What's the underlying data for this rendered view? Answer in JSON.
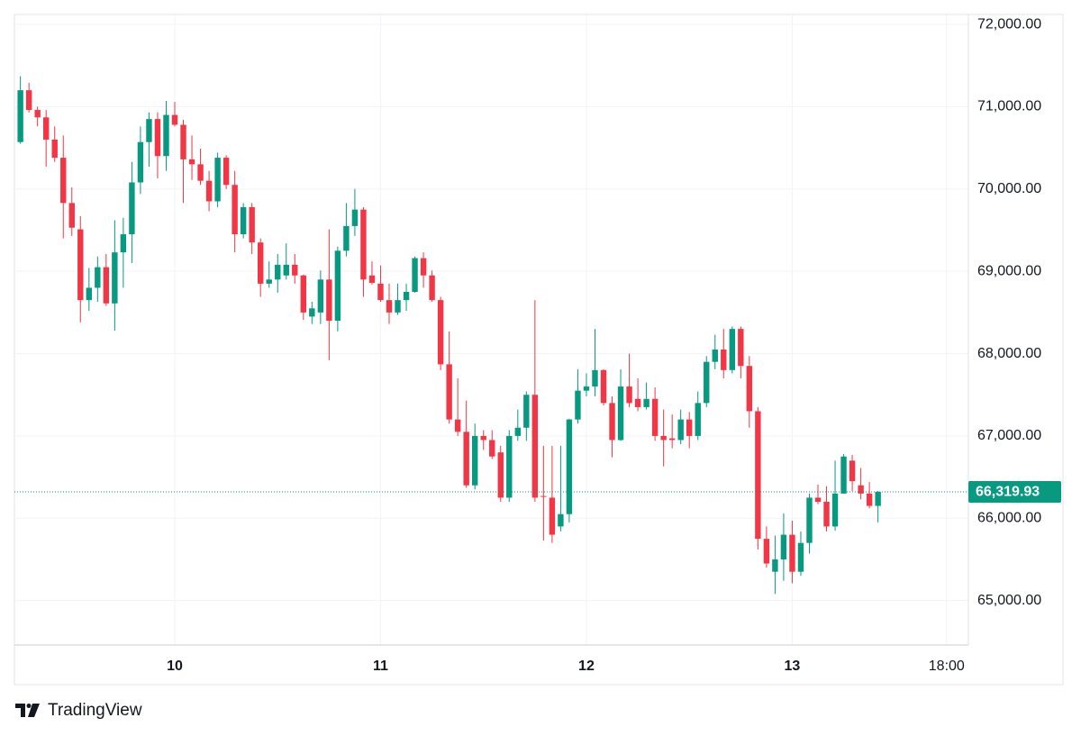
{
  "chart_data": {
    "type": "candlestick",
    "categories": [
      null,
      null,
      null,
      null,
      null,
      null,
      null,
      null,
      null,
      null,
      null,
      null,
      null,
      null,
      null,
      null,
      null,
      null,
      "10",
      null,
      null,
      null,
      null,
      null,
      null,
      null,
      null,
      null,
      null,
      null,
      null,
      null,
      null,
      null,
      null,
      null,
      null,
      null,
      null,
      null,
      null,
      null,
      "11",
      null,
      null,
      null,
      null,
      null,
      null,
      null,
      null,
      null,
      null,
      null,
      null,
      null,
      null,
      null,
      null,
      null,
      null,
      null,
      null,
      null,
      null,
      null,
      "12",
      null,
      null,
      null,
      null,
      null,
      null,
      null,
      null,
      null,
      null,
      null,
      null,
      null,
      null,
      null,
      null,
      null,
      null,
      null,
      null,
      null,
      null,
      null,
      "13",
      null,
      null,
      null,
      null,
      null,
      null,
      null,
      null,
      null,
      null,
      null,
      null,
      null,
      null,
      null,
      null,
      null,
      "18:00",
      null,
      null
    ],
    "open": [
      70570,
      71200,
      70960,
      70870,
      70600,
      70380,
      69830,
      69510,
      68650,
      68800,
      69050,
      68610,
      69230,
      69450,
      70080,
      70570,
      70850,
      70400,
      70900,
      70780,
      70360,
      70300,
      70100,
      69850,
      70380,
      70050,
      69450,
      69780,
      69350,
      68850,
      68900,
      68950,
      69080,
      68950,
      68450,
      68500,
      68900,
      68400,
      69250,
      69550,
      69750,
      68950,
      68850,
      68650,
      68500,
      68650,
      68750,
      69160,
      68950,
      68650,
      67870,
      67200,
      67050,
      66400,
      67000,
      66950,
      66800,
      66250,
      67000,
      67100,
      67500,
      66270,
      66250,
      65900,
      66050,
      67200,
      67550,
      67600,
      67800,
      67400,
      66950,
      67600,
      67450,
      67350,
      67450,
      67000,
      66970,
      66950,
      67200,
      67000,
      67400,
      67900,
      68050,
      67800,
      68300,
      67850,
      67300,
      65750,
      65350,
      65500,
      65800,
      65350,
      65700,
      66250,
      66200,
      65900,
      66300,
      66700,
      66400,
      66300,
      66150,
      null,
      null,
      null,
      null,
      null,
      null,
      null,
      null,
      null,
      null
    ],
    "high": [
      71370,
      71290,
      71000,
      70960,
      70760,
      70650,
      70020,
      69670,
      69040,
      69180,
      69210,
      69620,
      69650,
      70330,
      70760,
      70930,
      70930,
      71070,
      71060,
      70840,
      70650,
      70490,
      70220,
      70440,
      70410,
      70220,
      69830,
      69830,
      69400,
      69120,
      69210,
      69340,
      69210,
      68960,
      68630,
      69010,
      69510,
      69300,
      69830,
      70000,
      69780,
      69120,
      69070,
      68850,
      68850,
      68850,
      69180,
      69230,
      69010,
      68690,
      68270,
      67700,
      67430,
      67150,
      67070,
      67070,
      66880,
      67070,
      67320,
      67540,
      68650,
      66880,
      66880,
      66880,
      67210,
      67810,
      67760,
      68300,
      67810,
      67480,
      67810,
      68000,
      67700,
      67650,
      67590,
      67320,
      67260,
      67320,
      67290,
      67540,
      67970,
      68230,
      68300,
      68330,
      68330,
      67970,
      67350,
      65900,
      65790,
      66060,
      65970,
      65840,
      66300,
      66410,
      66390,
      66700,
      66780,
      66770,
      66610,
      66440,
      66330,
      null,
      null,
      null,
      null,
      null,
      null,
      null,
      null,
      null,
      null
    ],
    "low": [
      70550,
      70930,
      70760,
      70270,
      70330,
      69400,
      69430,
      68380,
      68520,
      68630,
      68580,
      68280,
      68800,
      69100,
      69940,
      70270,
      70130,
      70220,
      70760,
      69830,
      70110,
      70050,
      69730,
      69780,
      70000,
      69230,
      69400,
      69210,
      68690,
      68800,
      68740,
      68900,
      68850,
      68410,
      68360,
      68360,
      67920,
      68270,
      69180,
      69430,
      68690,
      68840,
      68630,
      68360,
      68470,
      68520,
      68740,
      68800,
      68630,
      67800,
      67150,
      67000,
      66370,
      66350,
      66830,
      66720,
      66200,
      66200,
      66940,
      66940,
      66200,
      65730,
      65700,
      65840,
      65950,
      67150,
      67480,
      67480,
      67370,
      66740,
      66940,
      67350,
      67300,
      67320,
      66940,
      66630,
      66850,
      66900,
      66850,
      66950,
      67350,
      67810,
      67700,
      67760,
      67700,
      67100,
      65620,
      65400,
      65080,
      65240,
      65210,
      65300,
      65570,
      66170,
      65840,
      65850,
      66300,
      66330,
      66230,
      66120,
      65950,
      null,
      null,
      null,
      null,
      null,
      null,
      null,
      null,
      null,
      null
    ],
    "close": [
      71200,
      70960,
      70870,
      70600,
      70380,
      69830,
      69530,
      68650,
      68800,
      69050,
      68610,
      69230,
      69450,
      70080,
      70570,
      70850,
      70400,
      70900,
      70780,
      70360,
      70300,
      70100,
      69850,
      70380,
      70050,
      69450,
      69780,
      69350,
      68850,
      68900,
      69080,
      69080,
      68950,
      68500,
      68550,
      68900,
      68400,
      69250,
      69550,
      69750,
      68900,
      68860,
      68650,
      68500,
      68650,
      68750,
      69160,
      68950,
      68650,
      67870,
      67200,
      67050,
      66400,
      67000,
      66950,
      66750,
      66250,
      67000,
      67100,
      67500,
      66250,
      66260,
      65800,
      66050,
      67200,
      67550,
      67600,
      67800,
      67400,
      66950,
      67600,
      67400,
      67350,
      67450,
      67000,
      66950,
      66950,
      67200,
      67000,
      67400,
      67900,
      68050,
      67800,
      68300,
      67850,
      67300,
      65750,
      65450,
      65500,
      65800,
      65350,
      65700,
      66250,
      66200,
      65900,
      66300,
      66750,
      66450,
      66300,
      66150,
      66319.93,
      null,
      null,
      null,
      null,
      null,
      null,
      null,
      null,
      null,
      null
    ],
    "up_color": "#089981",
    "down_color": "#f23645",
    "ylim": [
      64460,
      72110
    ],
    "yticks": [
      {
        "value": 65000,
        "label": "65,000.00"
      },
      {
        "value": 66000,
        "label": "66,000.00"
      },
      {
        "value": 67000,
        "label": "67,000.00"
      },
      {
        "value": 68000,
        "label": "68,000.00"
      },
      {
        "value": 69000,
        "label": "69,000.00"
      },
      {
        "value": 70000,
        "label": "70,000.00"
      },
      {
        "value": 71000,
        "label": "71,000.00"
      },
      {
        "value": 72000,
        "label": "72,000.00"
      }
    ],
    "price_line": {
      "value": 66319.93,
      "label": "66,319.93"
    },
    "grid": true
  },
  "branding": "TradingView"
}
